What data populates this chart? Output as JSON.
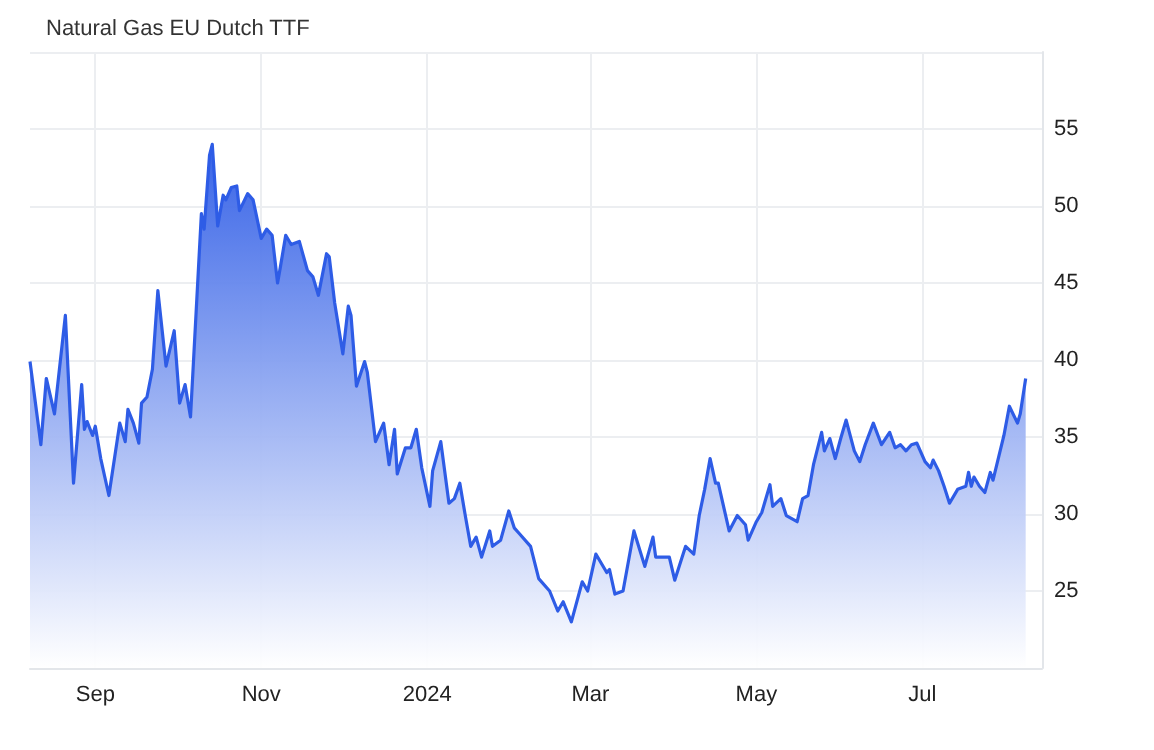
{
  "chart_data": {
    "type": "area",
    "title": "Natural Gas EU Dutch TTF",
    "x": [
      "2023-08-08",
      "2023-08-12",
      "2023-08-14",
      "2023-08-17",
      "2023-08-21",
      "2023-08-24",
      "2023-08-27",
      "2023-08-28",
      "2023-08-29",
      "2023-08-31",
      "2023-09-01",
      "2023-09-03",
      "2023-09-06",
      "2023-09-10",
      "2023-09-12",
      "2023-09-13",
      "2023-09-15",
      "2023-09-17",
      "2023-09-18",
      "2023-09-20",
      "2023-09-22",
      "2023-09-24",
      "2023-09-27",
      "2023-09-30",
      "2023-10-02",
      "2023-10-04",
      "2023-10-06",
      "2023-10-10",
      "2023-10-11",
      "2023-10-13",
      "2023-10-14",
      "2023-10-16",
      "2023-10-18",
      "2023-10-19",
      "2023-10-21",
      "2023-10-23",
      "2023-10-24",
      "2023-10-27",
      "2023-10-29",
      "2023-11-01",
      "2023-11-03",
      "2023-11-05",
      "2023-11-07",
      "2023-11-08",
      "2023-11-10",
      "2023-11-12",
      "2023-11-15",
      "2023-11-18",
      "2023-11-20",
      "2023-11-22",
      "2023-11-25",
      "2023-11-26",
      "2023-11-28",
      "2023-12-01",
      "2023-12-03",
      "2023-12-04",
      "2023-12-06",
      "2023-12-09",
      "2023-12-10",
      "2023-12-13",
      "2023-12-16",
      "2023-12-18",
      "2023-12-20",
      "2023-12-21",
      "2023-12-24",
      "2023-12-26",
      "2023-12-28",
      "2023-12-30",
      "2024-01-02",
      "2024-01-03",
      "2024-01-06",
      "2024-01-09",
      "2024-01-11",
      "2024-01-13",
      "2024-01-15",
      "2024-01-17",
      "2024-01-19",
      "2024-01-21",
      "2024-01-24",
      "2024-01-25",
      "2024-01-28",
      "2024-01-31",
      "2024-02-02",
      "2024-02-04",
      "2024-02-08",
      "2024-02-11",
      "2024-02-15",
      "2024-02-18",
      "2024-02-20",
      "2024-02-23",
      "2024-02-27",
      "2024-02-29",
      "2024-03-03",
      "2024-03-07",
      "2024-03-08",
      "2024-03-10",
      "2024-03-13",
      "2024-03-17",
      "2024-03-21",
      "2024-03-24",
      "2024-03-25",
      "2024-03-30",
      "2024-04-01",
      "2024-04-05",
      "2024-04-08",
      "2024-04-10",
      "2024-04-12",
      "2024-04-14",
      "2024-04-16",
      "2024-04-17",
      "2024-04-21",
      "2024-04-24",
      "2024-04-27",
      "2024-04-28",
      "2024-05-01",
      "2024-05-03",
      "2024-05-06",
      "2024-05-07",
      "2024-05-10",
      "2024-05-12",
      "2024-05-16",
      "2024-05-18",
      "2024-05-20",
      "2024-05-22",
      "2024-05-25",
      "2024-05-26",
      "2024-05-28",
      "2024-05-30",
      "2024-06-01",
      "2024-06-03",
      "2024-06-06",
      "2024-06-08",
      "2024-06-10",
      "2024-06-13",
      "2024-06-16",
      "2024-06-19",
      "2024-06-21",
      "2024-06-23",
      "2024-06-25",
      "2024-06-27",
      "2024-06-29",
      "2024-07-02",
      "2024-07-04",
      "2024-07-05",
      "2024-07-07",
      "2024-07-09",
      "2024-07-11",
      "2024-07-14",
      "2024-07-17",
      "2024-07-18",
      "2024-07-19",
      "2024-07-20",
      "2024-07-22",
      "2024-07-24",
      "2024-07-26",
      "2024-07-27",
      "2024-07-31",
      "2024-08-02",
      "2024-08-05",
      "2024-08-06",
      "2024-08-08"
    ],
    "series": [
      {
        "color": "#2e5ce6",
        "values": [
          39.9,
          34.5,
          38.8,
          36.5,
          42.9,
          32.0,
          38.4,
          35.5,
          36.0,
          35.1,
          35.7,
          33.6,
          31.2,
          35.9,
          34.7,
          36.8,
          35.9,
          34.6,
          37.2,
          37.6,
          39.4,
          44.5,
          39.6,
          41.9,
          37.2,
          38.4,
          36.3,
          49.5,
          48.5,
          53.3,
          54.0,
          48.7,
          50.7,
          50.4,
          51.2,
          51.3,
          49.7,
          50.8,
          50.4,
          47.9,
          48.5,
          48.1,
          45.0,
          46.0,
          48.1,
          47.5,
          47.7,
          45.8,
          45.4,
          44.2,
          46.9,
          46.7,
          43.7,
          40.4,
          43.5,
          42.9,
          38.3,
          39.9,
          39.2,
          34.7,
          35.9,
          33.2,
          35.5,
          32.6,
          34.3,
          34.3,
          35.5,
          33.0,
          30.5,
          32.8,
          34.7,
          30.7,
          31.0,
          32.0,
          29.9,
          27.9,
          28.5,
          27.2,
          28.9,
          27.9,
          28.3,
          30.2,
          29.1,
          28.7,
          27.9,
          25.8,
          25.0,
          23.7,
          24.3,
          23.0,
          25.6,
          25.0,
          27.4,
          26.2,
          26.4,
          24.8,
          25.0,
          28.9,
          26.6,
          28.5,
          27.2,
          27.2,
          25.7,
          27.9,
          27.4,
          29.9,
          31.6,
          33.6,
          32.0,
          32.0,
          28.9,
          29.9,
          29.3,
          28.3,
          29.5,
          30.1,
          31.9,
          30.5,
          31.0,
          29.9,
          29.5,
          31.0,
          31.2,
          33.2,
          35.3,
          34.1,
          34.9,
          33.6,
          34.9,
          36.1,
          34.1,
          33.4,
          34.5,
          35.9,
          34.5,
          35.3,
          34.3,
          34.5,
          34.1,
          34.5,
          34.6,
          33.4,
          33.0,
          33.5,
          32.8,
          31.8,
          30.7,
          31.6,
          31.8,
          32.7,
          31.8,
          32.4,
          31.8,
          31.4,
          32.7,
          32.2,
          35.1,
          37.0,
          35.9,
          36.5,
          38.8
        ]
      }
    ],
    "xlim": [
      "2023-08-08",
      "2024-08-14"
    ],
    "xticks": [
      {
        "value": "2023-09-01",
        "label": "Sep"
      },
      {
        "value": "2023-11-01",
        "label": "Nov"
      },
      {
        "value": "2024-01-01",
        "label": "2024"
      },
      {
        "value": "2024-03-01",
        "label": "Mar"
      },
      {
        "value": "2024-05-01",
        "label": "May"
      },
      {
        "value": "2024-07-01",
        "label": "Jul"
      }
    ],
    "ylim": [
      20,
      60
    ],
    "yticks": [
      {
        "value": 20,
        "label": null
      },
      25,
      30,
      35,
      40,
      45,
      50,
      55,
      {
        "value": 60,
        "label": null
      }
    ],
    "grid": true,
    "marker": "none"
  }
}
